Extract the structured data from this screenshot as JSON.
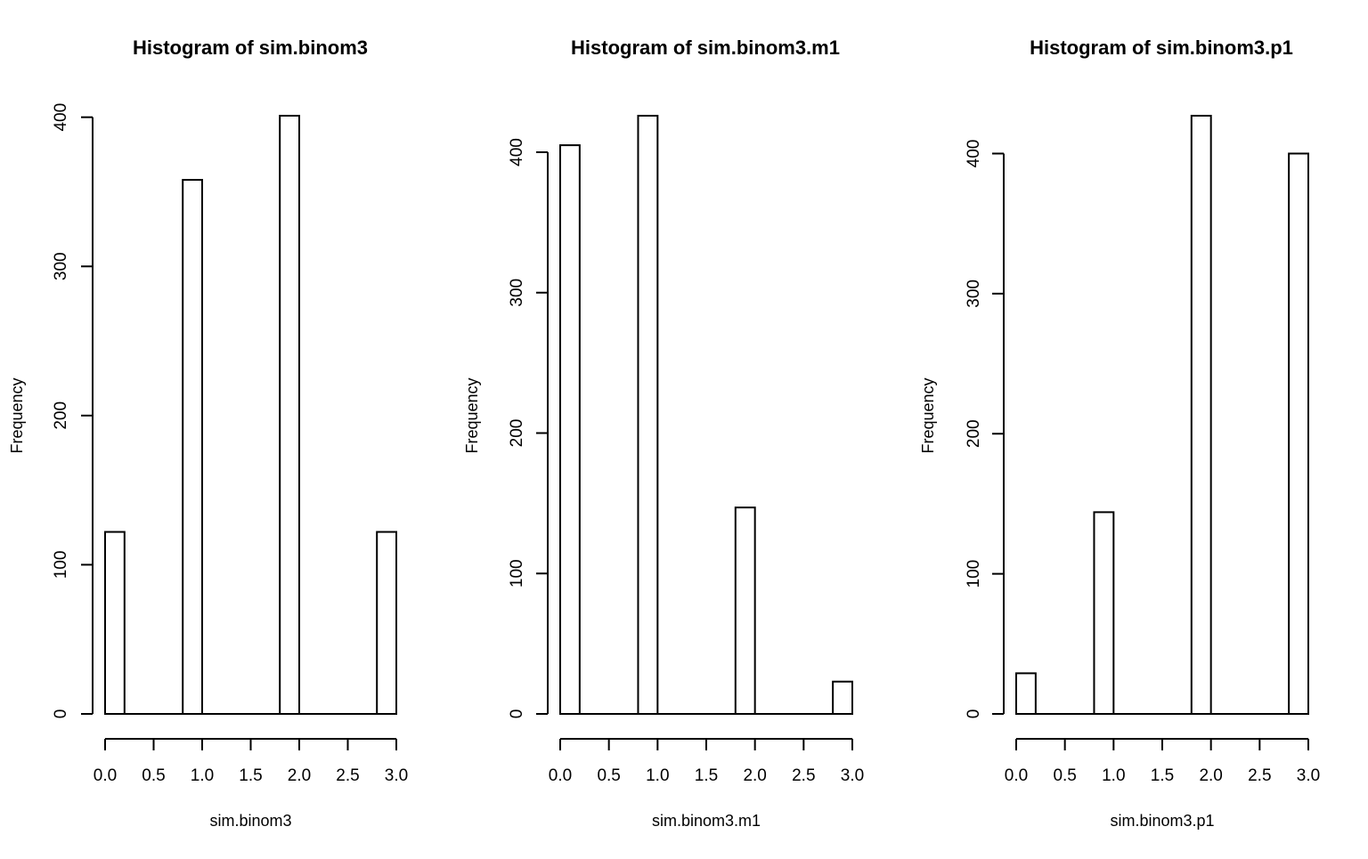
{
  "chart_data": [
    {
      "type": "bar",
      "title": "Histogram of sim.binom3",
      "xlabel": "sim.binom3",
      "ylabel": "Frequency",
      "bins": [
        [
          0.0,
          0.2
        ],
        [
          0.8,
          1.0
        ],
        [
          1.8,
          2.0
        ],
        [
          2.8,
          3.0
        ]
      ],
      "values": [
        122,
        358,
        401,
        122
      ],
      "xlim": [
        0,
        3
      ],
      "ylim": [
        0,
        401
      ],
      "xticks": [
        "0.0",
        "0.5",
        "1.0",
        "1.5",
        "2.0",
        "2.5",
        "3.0"
      ],
      "yticks": [
        "0",
        "100",
        "200",
        "300",
        "400"
      ],
      "grid": false
    },
    {
      "type": "bar",
      "title": "Histogram of sim.binom3.m1",
      "xlabel": "sim.binom3.m1",
      "ylabel": "Frequency",
      "bins": [
        [
          0.0,
          0.2
        ],
        [
          0.8,
          1.0
        ],
        [
          1.8,
          2.0
        ],
        [
          2.8,
          3.0
        ]
      ],
      "values": [
        405,
        426,
        147,
        23
      ],
      "xlim": [
        0,
        3
      ],
      "ylim": [
        0,
        426
      ],
      "xticks": [
        "0.0",
        "0.5",
        "1.0",
        "1.5",
        "2.0",
        "2.5",
        "3.0"
      ],
      "yticks": [
        "0",
        "100",
        "200",
        "300",
        "400"
      ],
      "grid": false
    },
    {
      "type": "bar",
      "title": "Histogram of sim.binom3.p1",
      "xlabel": "sim.binom3.p1",
      "ylabel": "Frequency",
      "bins": [
        [
          0.0,
          0.2
        ],
        [
          0.8,
          1.0
        ],
        [
          1.8,
          2.0
        ],
        [
          2.8,
          3.0
        ]
      ],
      "values": [
        29,
        144,
        427,
        400
      ],
      "xlim": [
        0,
        3
      ],
      "ylim": [
        0,
        427
      ],
      "xticks": [
        "0.0",
        "0.5",
        "1.0",
        "1.5",
        "2.0",
        "2.5",
        "3.0"
      ],
      "yticks": [
        "0",
        "100",
        "200",
        "300",
        "400"
      ],
      "grid": false
    }
  ]
}
